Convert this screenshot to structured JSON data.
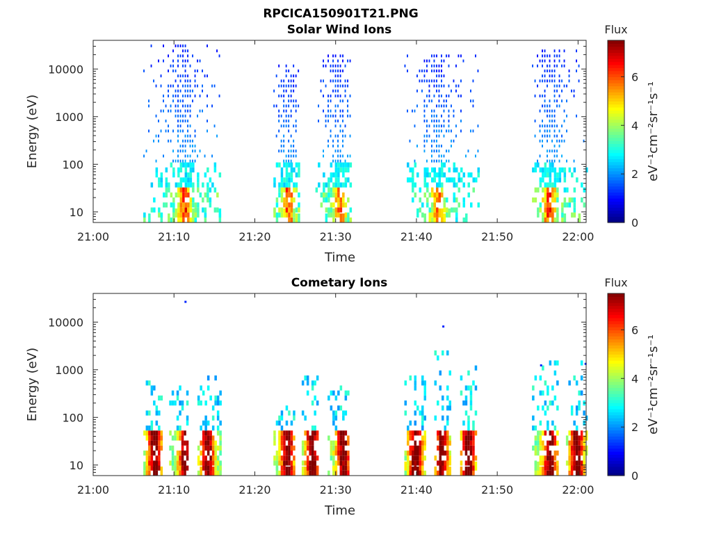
{
  "figure": {
    "filename": "RPCICA150901T21.PNG"
  },
  "colorbar": {
    "title": "Flux",
    "label": "eV⁻¹cm⁻²sr⁻¹s⁻¹",
    "range": [
      0,
      7.5
    ],
    "ticks": [
      "0",
      "2",
      "4",
      "6"
    ],
    "colormap": "jet"
  },
  "chart_data": [
    {
      "type": "heatmap",
      "title": "Solar Wind Ions",
      "xlabel": "Time",
      "ylabel": "Energy (eV)",
      "xlim": [
        "21:00",
        "22:01"
      ],
      "ylim": [
        6,
        40000
      ],
      "yscale": "log",
      "x_ticks": [
        "21:00",
        "21:10",
        "21:20",
        "21:30",
        "21:40",
        "21:50",
        "22:00"
      ],
      "y_ticks": [
        "10",
        "100",
        "1000",
        "10000"
      ],
      "bursts": [
        {
          "start_min": 6.2,
          "end_min": 15.8,
          "core_min": 11.2,
          "upper_energy_eV": 35000,
          "peak_flux": 6.5,
          "peak_energy_eV": 25
        },
        {
          "start_min": 22.3,
          "end_min": 25.4,
          "core_min": 24.0,
          "upper_energy_eV": 14000,
          "peak_flux": 6.0,
          "peak_energy_eV": 20
        },
        {
          "start_min": 27.5,
          "end_min": 31.8,
          "core_min": 30.4,
          "upper_energy_eV": 25000,
          "peak_flux": 5.5,
          "peak_energy_eV": 25
        },
        {
          "start_min": 38.5,
          "end_min": 47.8,
          "core_min": 42.5,
          "upper_energy_eV": 21000,
          "peak_flux": 5.5,
          "peak_energy_eV": 15
        },
        {
          "start_min": 54.3,
          "end_min": 61.0,
          "core_min": 56.3,
          "upper_energy_eV": 33000,
          "peak_flux": 6.5,
          "peak_energy_eV": 25
        }
      ]
    },
    {
      "type": "heatmap",
      "title": "Cometary Ions",
      "xlabel": "Time",
      "ylabel": "Energy (eV)",
      "xlim": [
        "21:00",
        "22:01"
      ],
      "ylim": [
        6,
        40000
      ],
      "yscale": "log",
      "x_ticks": [
        "21:00",
        "21:10",
        "21:20",
        "21:30",
        "21:40",
        "21:50",
        "22:00"
      ],
      "y_ticks": [
        "10",
        "100",
        "1000",
        "10000"
      ],
      "bursts": [
        {
          "start_min": 6.2,
          "end_min": 8.6,
          "core_min": 7.5,
          "upper_energy_eV": 700,
          "peak_flux": 7.3,
          "peak_energy_eV": 15
        },
        {
          "start_min": 9.4,
          "end_min": 11.7,
          "core_min": 11.3,
          "upper_energy_eV": 700,
          "peak_flux": 7.0,
          "peak_energy_eV": 25
        },
        {
          "start_min": 12.9,
          "end_min": 15.8,
          "core_min": 14.0,
          "upper_energy_eV": 900,
          "peak_flux": 7.0,
          "peak_energy_eV": 15
        },
        {
          "start_min": 22.3,
          "end_min": 24.8,
          "core_min": 23.9,
          "upper_energy_eV": 200,
          "peak_flux": 7.0,
          "peak_energy_eV": 20
        },
        {
          "start_min": 25.8,
          "end_min": 27.7,
          "core_min": 27.0,
          "upper_energy_eV": 1000,
          "peak_flux": 7.3,
          "peak_energy_eV": 10
        },
        {
          "start_min": 29.0,
          "end_min": 31.6,
          "core_min": 30.8,
          "upper_energy_eV": 500,
          "peak_flux": 7.0,
          "peak_energy_eV": 20
        },
        {
          "start_min": 38.5,
          "end_min": 41.1,
          "core_min": 39.8,
          "upper_energy_eV": 900,
          "peak_flux": 7.3,
          "peak_energy_eV": 15
        },
        {
          "start_min": 42.2,
          "end_min": 44.1,
          "core_min": 43.0,
          "upper_energy_eV": 8500,
          "peak_flux": 6.8,
          "peak_energy_eV": 10
        },
        {
          "start_min": 45.4,
          "end_min": 47.4,
          "core_min": 46.3,
          "upper_energy_eV": 1200,
          "peak_flux": 7.3,
          "peak_energy_eV": 15
        },
        {
          "start_min": 54.3,
          "end_min": 57.6,
          "core_min": 56.4,
          "upper_energy_eV": 1500,
          "peak_flux": 7.0,
          "peak_energy_eV": 20
        },
        {
          "start_min": 58.5,
          "end_min": 61.0,
          "core_min": 59.7,
          "upper_energy_eV": 1500,
          "peak_flux": 7.3,
          "peak_energy_eV": 12
        }
      ]
    }
  ]
}
